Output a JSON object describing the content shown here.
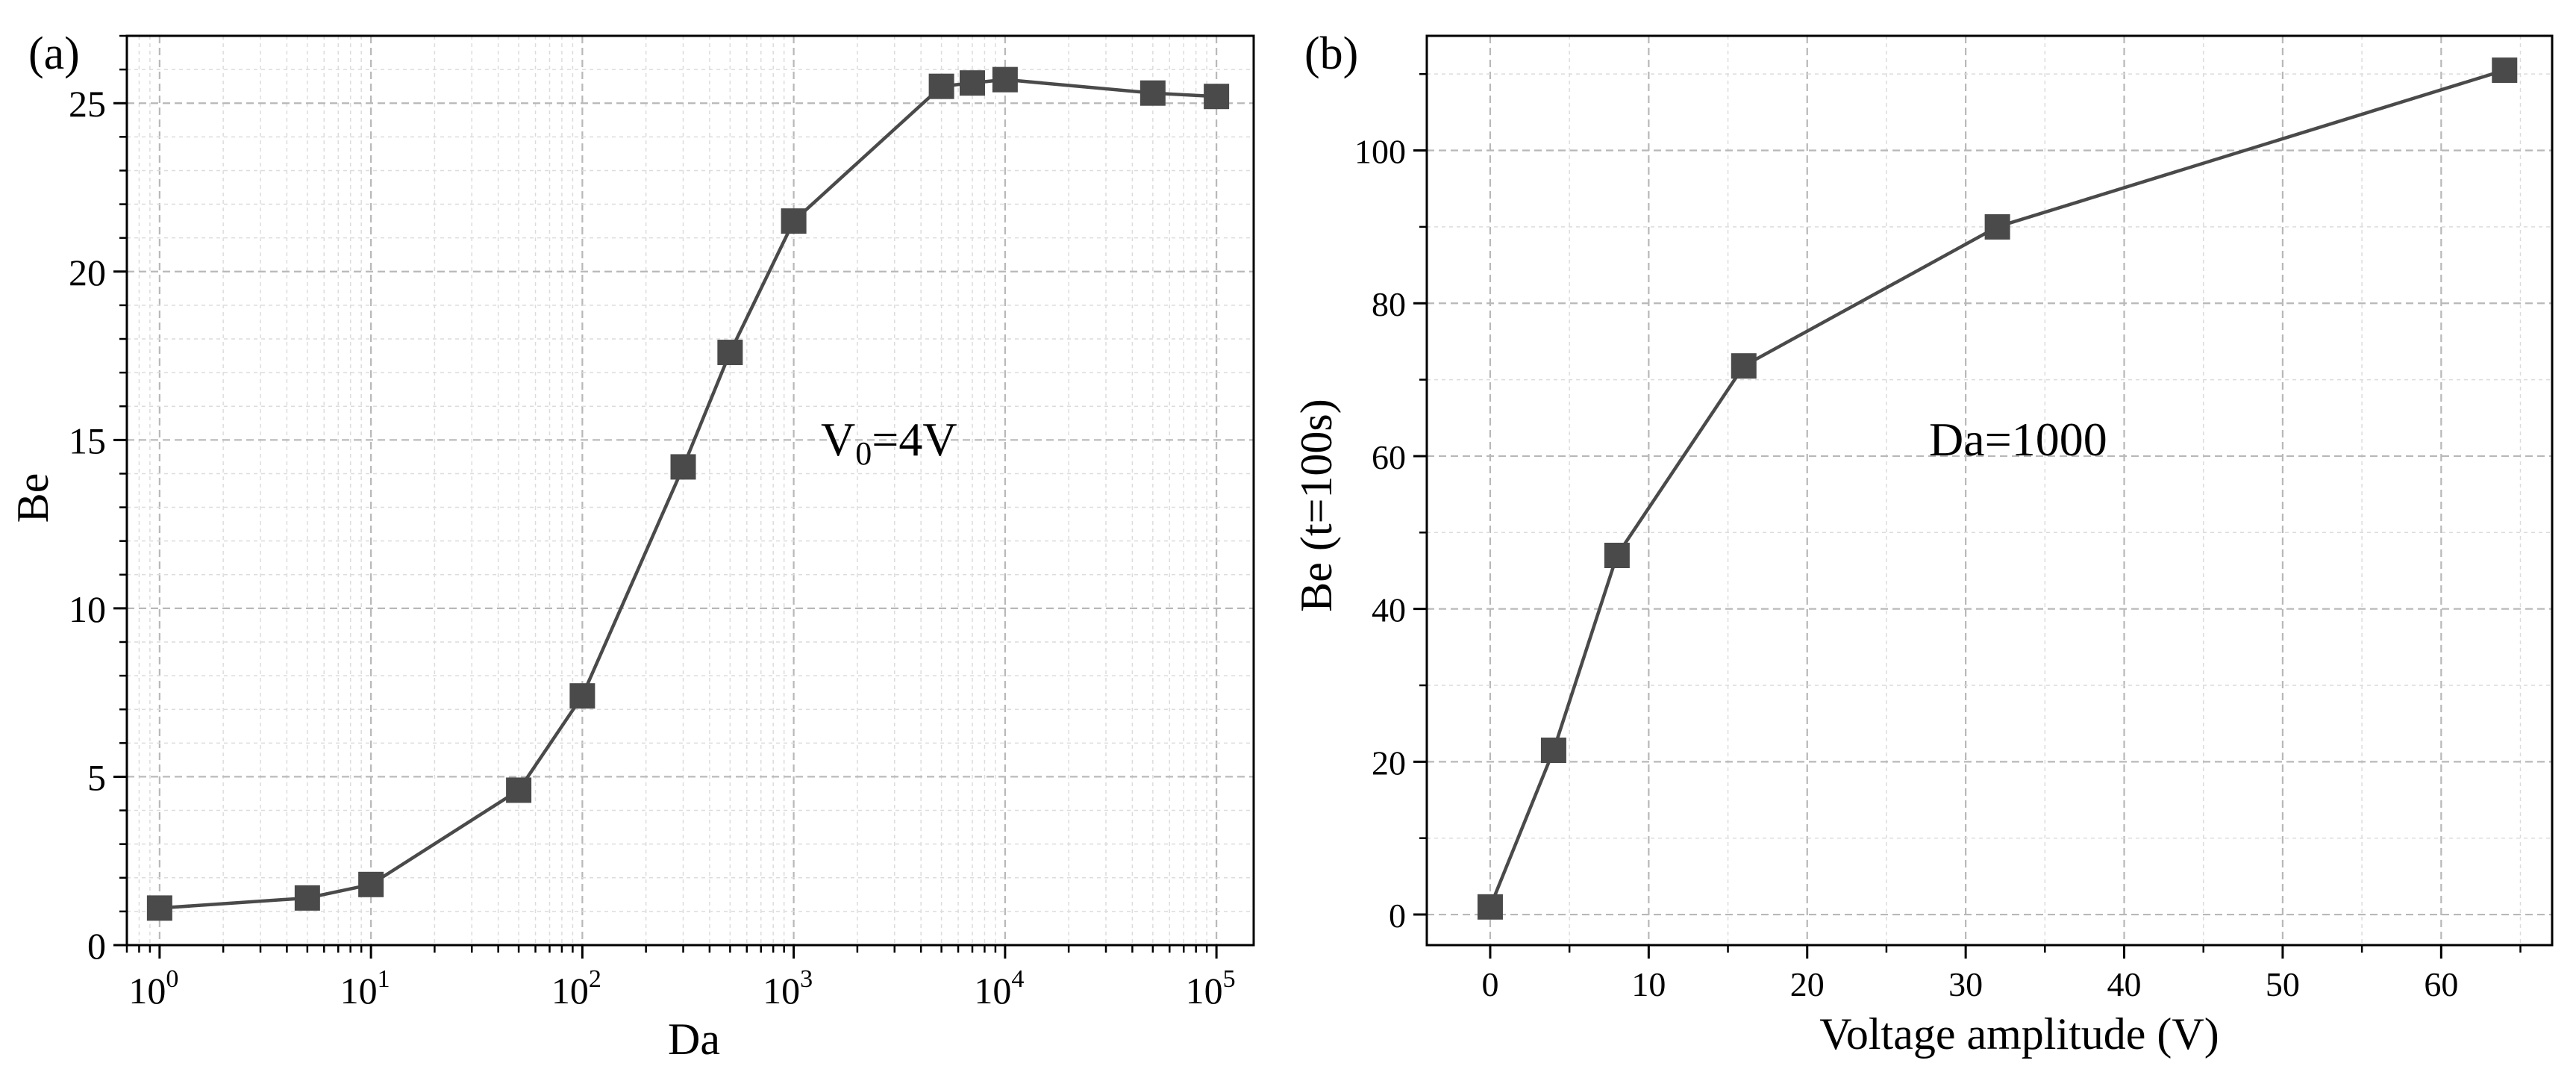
{
  "colors": {
    "series": "#4a4a4a",
    "marker": "#4a4a4a",
    "grid": "#b8b8b8",
    "axis": "#000000"
  },
  "chart_data": [
    {
      "type": "line",
      "panel_label": "(a)",
      "title": "",
      "xlabel": "Da",
      "ylabel": "Be",
      "xscale": "log",
      "xlim": [
        0.7,
        150000
      ],
      "ylim": [
        0,
        27
      ],
      "xtick_bases": [
        "10",
        "10",
        "10",
        "10",
        "10",
        "10"
      ],
      "xtick_exponents": [
        "0",
        "1",
        "2",
        "3",
        "4",
        "5"
      ],
      "yticks": [
        "0",
        "5",
        "10",
        "15",
        "20",
        "25"
      ],
      "annotation": {
        "main": "V",
        "sub": "0",
        "rest": "=4V"
      },
      "grid": true,
      "marker": "square",
      "series": [
        {
          "name": "Be",
          "x": [
            1,
            5,
            10,
            50,
            100,
            300,
            500,
            1000,
            5000,
            7000,
            10000,
            50000,
            100000
          ],
          "y": [
            1.1,
            1.4,
            1.8,
            4.6,
            7.4,
            14.2,
            17.6,
            21.5,
            25.5,
            25.6,
            25.7,
            25.3,
            25.2
          ]
        }
      ]
    },
    {
      "type": "line",
      "panel_label": "(b)",
      "title": "",
      "xlabel": "Voltage amplitude (V)",
      "ylabel": "Be (t=100s)",
      "xlim": [
        -4,
        67
      ],
      "ylim": [
        -4,
        115
      ],
      "xticks": [
        "0",
        "10",
        "20",
        "30",
        "40",
        "50",
        "60"
      ],
      "yticks": [
        "0",
        "20",
        "40",
        "60",
        "80",
        "100"
      ],
      "annotation": "Da=1000",
      "grid": true,
      "marker": "square",
      "series": [
        {
          "name": "Be (t=100s)",
          "x": [
            0,
            4,
            8,
            16,
            32,
            64
          ],
          "y": [
            1,
            21.5,
            47,
            71.8,
            90,
            110.5
          ]
        }
      ]
    }
  ]
}
